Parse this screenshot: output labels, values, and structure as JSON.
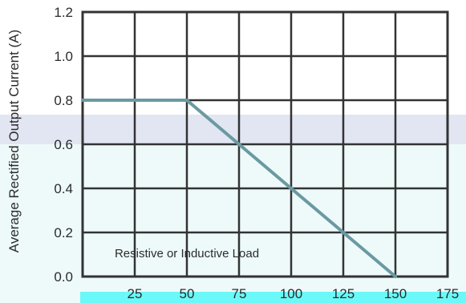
{
  "chart_data": {
    "type": "line",
    "title": "",
    "xlabel": "",
    "ylabel": "Average Rectified Output Current (A)",
    "xlim": [
      0,
      175
    ],
    "ylim": [
      0,
      1.2
    ],
    "x_ticks": [
      25,
      50,
      75,
      100,
      125,
      150,
      175
    ],
    "y_ticks": [
      0.0,
      0.2,
      0.4,
      0.6,
      0.8,
      1.0,
      1.2
    ],
    "x_tick_labels": [
      "25",
      "50",
      "75",
      "100",
      "125",
      "150",
      "175"
    ],
    "y_tick_labels": [
      "0.0",
      "0.2",
      "0.4",
      "0.6",
      "0.8",
      "1.0",
      "1.2"
    ],
    "grid": true,
    "annotation": "Resistive or Inductive Load",
    "series": [
      {
        "x": [
          0,
          50,
          150
        ],
        "y": [
          0.8,
          0.8,
          0.0
        ],
        "color": "#6a9aa1"
      }
    ]
  },
  "colors": {
    "line": "#6a9aa1",
    "grid": "#333333",
    "band_top": "#e2e5f2",
    "band_bottom": "#eefafa"
  }
}
